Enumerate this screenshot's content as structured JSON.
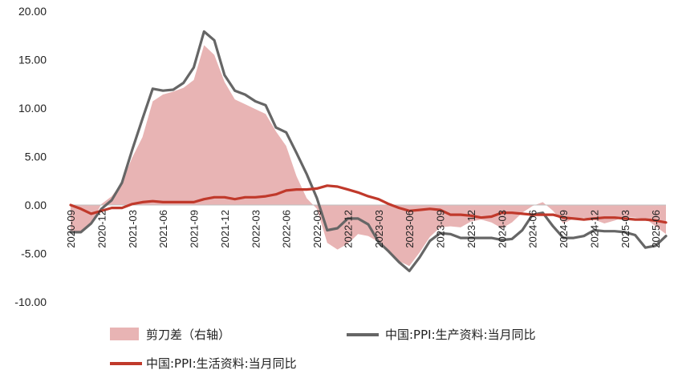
{
  "chart_data": {
    "type": "line",
    "title": "",
    "xlabel": "",
    "ylabel": "",
    "ylim": [
      -10,
      20
    ],
    "yticks": [
      "20.00",
      "15.00",
      "10.00",
      "5.00",
      "0.00",
      "-5.00",
      "-10.00"
    ],
    "ytick_values": [
      20,
      15,
      10,
      5,
      0,
      -5,
      -10
    ],
    "grid": false,
    "legend_position": "bottom",
    "x": [
      "2020-09",
      "2020-10",
      "2020-11",
      "2020-12",
      "2021-01",
      "2021-02",
      "2021-03",
      "2021-04",
      "2021-05",
      "2021-06",
      "2021-07",
      "2021-08",
      "2021-09",
      "2021-10",
      "2021-11",
      "2021-12",
      "2022-01",
      "2022-02",
      "2022-03",
      "2022-04",
      "2022-05",
      "2022-06",
      "2022-07",
      "2022-08",
      "2022-09",
      "2022-10",
      "2022-11",
      "2022-12",
      "2023-01",
      "2023-02",
      "2023-03",
      "2023-04",
      "2023-05",
      "2023-06",
      "2023-07",
      "2023-08",
      "2023-09",
      "2023-10",
      "2023-11",
      "2023-12",
      "2024-01",
      "2024-02",
      "2024-03",
      "2024-04",
      "2024-05",
      "2024-06",
      "2024-07",
      "2024-08",
      "2024-09",
      "2024-10",
      "2024-11",
      "2024-12",
      "2025-01",
      "2025-02",
      "2025-03",
      "2025-04",
      "2025-05",
      "2025-06",
      "2025-07"
    ],
    "x_tick_labels": [
      "2020-09",
      "2020-12",
      "2021-03",
      "2021-06",
      "2021-09",
      "2021-12",
      "2022-03",
      "2022-06",
      "2022-09",
      "2022-12",
      "2023-03",
      "2023-06",
      "2023-09",
      "2023-12",
      "2024-03",
      "2024-06",
      "2024-09",
      "2024-12",
      "2025-03",
      "2025-06"
    ],
    "series": [
      {
        "name": "剪刀差（右轴）",
        "kind": "area",
        "color": "#e8b4b4",
        "values": [
          -2.8,
          -2.9,
          -1.9,
          0.1,
          0.9,
          2.3,
          4.9,
          7.0,
          10.7,
          11.4,
          11.7,
          12.1,
          12.9,
          16.5,
          15.5,
          12.7,
          10.9,
          10.4,
          9.9,
          9.4,
          7.6,
          6.1,
          3.0,
          0.7,
          -0.4,
          -3.9,
          -4.6,
          -4.0,
          -3.0,
          -3.2,
          -3.8,
          -5.0,
          -5.8,
          -6.3,
          -4.9,
          -3.3,
          -2.3,
          -2.2,
          -2.3,
          -1.7,
          -1.5,
          -1.8,
          -2.4,
          -1.8,
          -0.8,
          -0.1,
          0.3,
          -0.6,
          -1.9,
          -1.4,
          -1.3,
          -1.5,
          -1.9,
          -1.6,
          -1.2,
          -1.3,
          -1.4,
          -2.2,
          -3.0
        ]
      },
      {
        "name": "中国:PPI:生产资料:当月同比",
        "kind": "line",
        "color": "#666666",
        "values": [
          -2.8,
          -2.8,
          -1.9,
          -0.4,
          0.5,
          2.3,
          5.7,
          8.9,
          12.0,
          11.8,
          11.9,
          12.6,
          14.2,
          17.9,
          17.0,
          13.4,
          11.8,
          11.4,
          10.7,
          10.3,
          8.0,
          7.5,
          5.4,
          3.2,
          0.7,
          -2.6,
          -2.4,
          -1.4,
          -1.4,
          -2.0,
          -3.8,
          -4.8,
          -5.9,
          -6.8,
          -5.4,
          -3.7,
          -2.9,
          -3.0,
          -3.4,
          -3.4,
          -3.4,
          -3.4,
          -3.6,
          -3.5,
          -2.6,
          -1.0,
          -0.8,
          -2.2,
          -3.4,
          -3.4,
          -3.2,
          -2.6,
          -2.7,
          -2.7,
          -2.8,
          -3.1,
          -4.4,
          -4.2,
          -3.2
        ]
      },
      {
        "name": "中国:PPI:生活资料:当月同比",
        "kind": "line",
        "color": "#c0392b",
        "values": [
          0.0,
          -0.4,
          -0.9,
          -0.6,
          -0.3,
          -0.3,
          0.1,
          0.3,
          0.4,
          0.3,
          0.3,
          0.3,
          0.3,
          0.6,
          0.8,
          0.8,
          0.6,
          0.8,
          0.8,
          0.9,
          1.1,
          1.5,
          1.6,
          1.6,
          1.7,
          2.0,
          1.9,
          1.6,
          1.3,
          0.9,
          0.6,
          0.1,
          -0.3,
          -0.6,
          -0.5,
          -0.4,
          -0.5,
          -1.0,
          -1.0,
          -1.1,
          -1.3,
          -1.2,
          -0.8,
          -0.8,
          -0.9,
          -1.0,
          -1.0,
          -1.0,
          -1.3,
          -1.4,
          -1.5,
          -1.4,
          -1.3,
          -1.3,
          -1.4,
          -1.5,
          -1.5,
          -1.6,
          -1.8
        ]
      }
    ]
  }
}
